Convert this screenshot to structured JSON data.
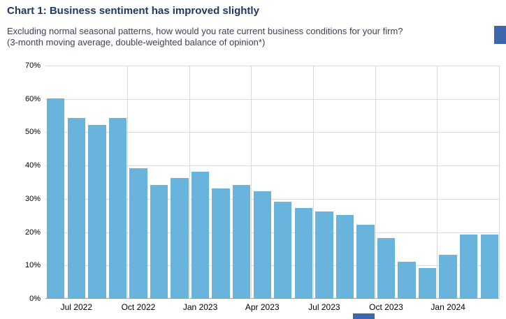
{
  "page": {
    "title": "Chart 1: Business sentiment has improved slightly",
    "subtitle_line1": "Excluding normal seasonal patterns, how would you rate current business conditions for your firm?",
    "subtitle_line2": "(3-month moving average, double-weighted balance of opinion*)"
  },
  "chart_data": {
    "type": "bar",
    "title": "Chart 1: Business sentiment has improved slightly",
    "categories": [
      "Jun 2022",
      "Jul 2022",
      "Aug 2022",
      "Sep 2022",
      "Oct 2022",
      "Nov 2022",
      "Dec 2022",
      "Jan 2023",
      "Feb 2023",
      "Mar 2023",
      "Apr 2023",
      "May 2023",
      "Jun 2023",
      "Jul 2023",
      "Aug 2023",
      "Sep 2023",
      "Oct 2023",
      "Nov 2023",
      "Dec 2023",
      "Jan 2024",
      "Feb 2024",
      "Mar 2024"
    ],
    "values": [
      60,
      54,
      52,
      54,
      39,
      34,
      36,
      38,
      33,
      34,
      32,
      29,
      27,
      26,
      25,
      22,
      18,
      11,
      9,
      13,
      19,
      19
    ],
    "xlabel": "",
    "ylabel": "",
    "ylim": [
      0,
      70
    ],
    "yticks": [
      0,
      10,
      20,
      30,
      40,
      50,
      60,
      70
    ],
    "ytick_suffix": "%",
    "xtick_labels": [
      {
        "index": 1,
        "label": "Jul 2022"
      },
      {
        "index": 4,
        "label": "Oct 2022"
      },
      {
        "index": 7,
        "label": "Jan 2023"
      },
      {
        "index": 10,
        "label": "Apr 2023"
      },
      {
        "index": 13,
        "label": "Jul 2023"
      },
      {
        "index": 16,
        "label": "Oct 2023"
      },
      {
        "index": 19,
        "label": "Jan 2024"
      }
    ],
    "vgrid_after_index": [
      3,
      6,
      9,
      12,
      15,
      18,
      21
    ],
    "grid": "horizontal gridlines every 10%, vertical gridlines at quarter boundaries",
    "legend": "none",
    "colors": {
      "bar": "#68B4DC",
      "grid": "#D9D9D9",
      "axis": "#9B9B9B",
      "title": "#1F3864",
      "subtitle": "#3F3F52",
      "tick": "#000000",
      "artifact_blue": "#3E66AC"
    }
  }
}
